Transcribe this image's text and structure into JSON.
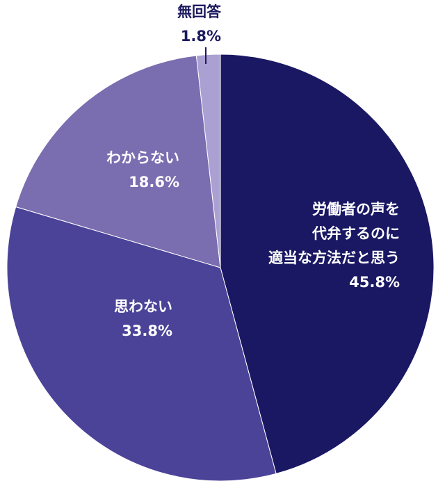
{
  "chart_data": {
    "type": "pie",
    "title": "",
    "start": "top",
    "direction": "clockwise",
    "slices": [
      {
        "label_lines": [
          "労働者の声を",
          "代弁するのに",
          "適当な方法だと思う"
        ],
        "value": 45.8,
        "value_text": "45.8%",
        "color": "#1a1863",
        "label_color": "#ffffff"
      },
      {
        "label_lines": [
          "思わない"
        ],
        "value": 33.8,
        "value_text": "33.8%",
        "color": "#4b4398",
        "label_color": "#ffffff"
      },
      {
        "label_lines": [
          "わからない"
        ],
        "value": 18.6,
        "value_text": "18.6%",
        "color": "#7a6db0",
        "label_color": "#ffffff"
      },
      {
        "label_lines": [
          "無回答"
        ],
        "value": 1.8,
        "value_text": "1.8%",
        "color": "#aba0d2",
        "label_color": "#1c1a5e",
        "external_label": true
      }
    ]
  }
}
